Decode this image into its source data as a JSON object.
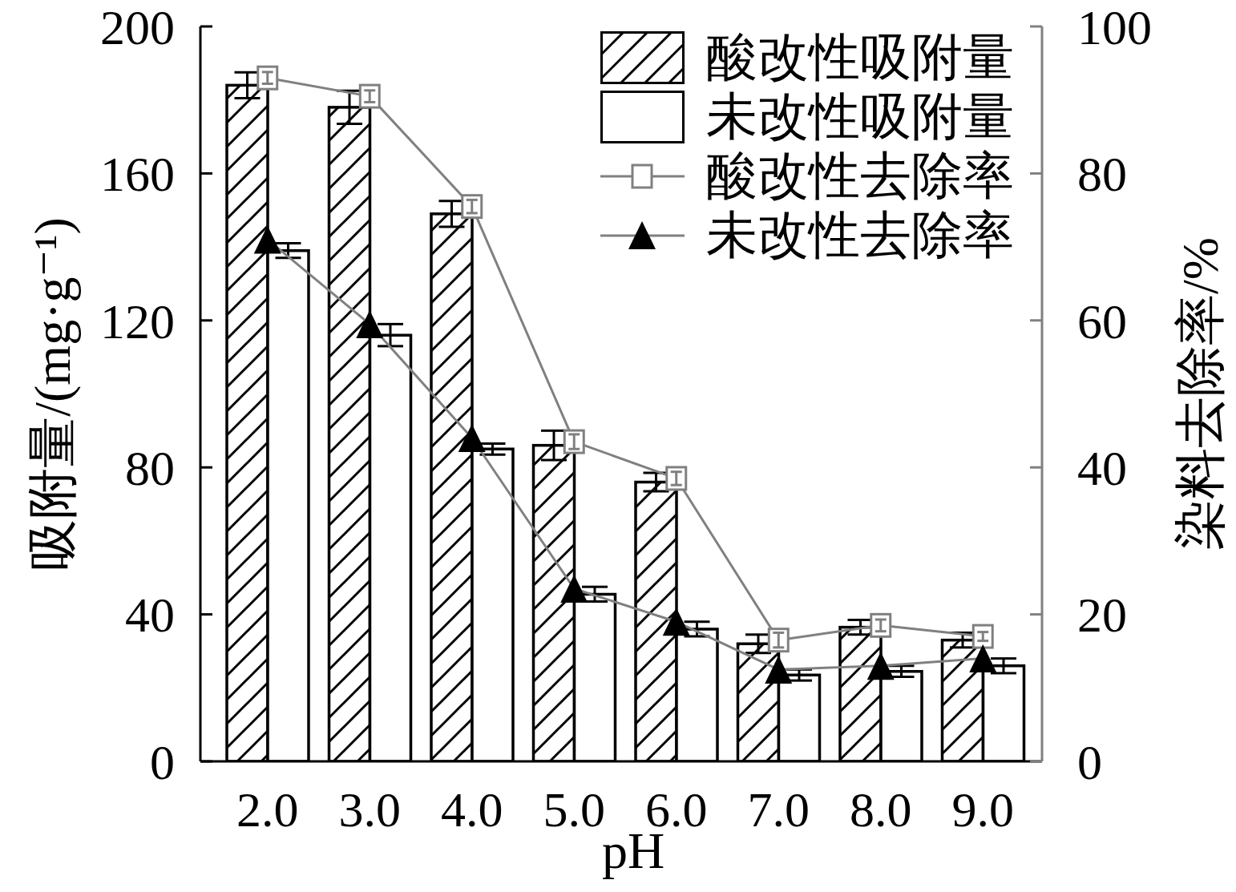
{
  "chart_data": {
    "type": "bar",
    "xlabel": "pH",
    "ylabel": "吸附量/(mg·g⁻¹)",
    "y2label": "染料去除率/%",
    "categories": [
      "2.0",
      "3.0",
      "4.0",
      "5.0",
      "6.0",
      "7.0",
      "8.0",
      "9.0"
    ],
    "series": [
      {
        "name": "酸改性吸附量",
        "color": "#000000",
        "values": [
          184,
          178,
          149,
          86,
          76,
          32,
          36.5,
          33
        ],
        "errors": [
          3.5,
          4.5,
          3.5,
          4,
          2.5,
          2.5,
          2,
          2
        ]
      },
      {
        "name": "未改性吸附量",
        "color": "#ffffff",
        "values": [
          139,
          116,
          85,
          45.5,
          36,
          23.5,
          24.5,
          26
        ],
        "errors": [
          2,
          3,
          1.5,
          2,
          2,
          1.5,
          1.5,
          2
        ]
      },
      {
        "name": "酸改性去除率",
        "type": "line",
        "axis": "y2",
        "marker": "square",
        "color": "#808080",
        "values": [
          93,
          90.5,
          75.5,
          43.5,
          38.5,
          16.5,
          18.5,
          17
        ],
        "errors": [
          0.8,
          0.8,
          0.9,
          1,
          0.9,
          1,
          0.8,
          0.6
        ]
      },
      {
        "name": "未改性去除率",
        "type": "line",
        "axis": "y2",
        "marker": "triangle",
        "color": "#808080",
        "values": [
          71,
          59.5,
          44,
          23.5,
          19,
          12.5,
          13,
          14
        ]
      }
    ],
    "ylim": [
      0,
      200
    ],
    "yticks": [
      0,
      40,
      80,
      120,
      160,
      200
    ],
    "y2lim": [
      0,
      100
    ],
    "y2ticks": [
      0,
      20,
      40,
      60,
      80,
      100
    ],
    "legend": "top right"
  }
}
